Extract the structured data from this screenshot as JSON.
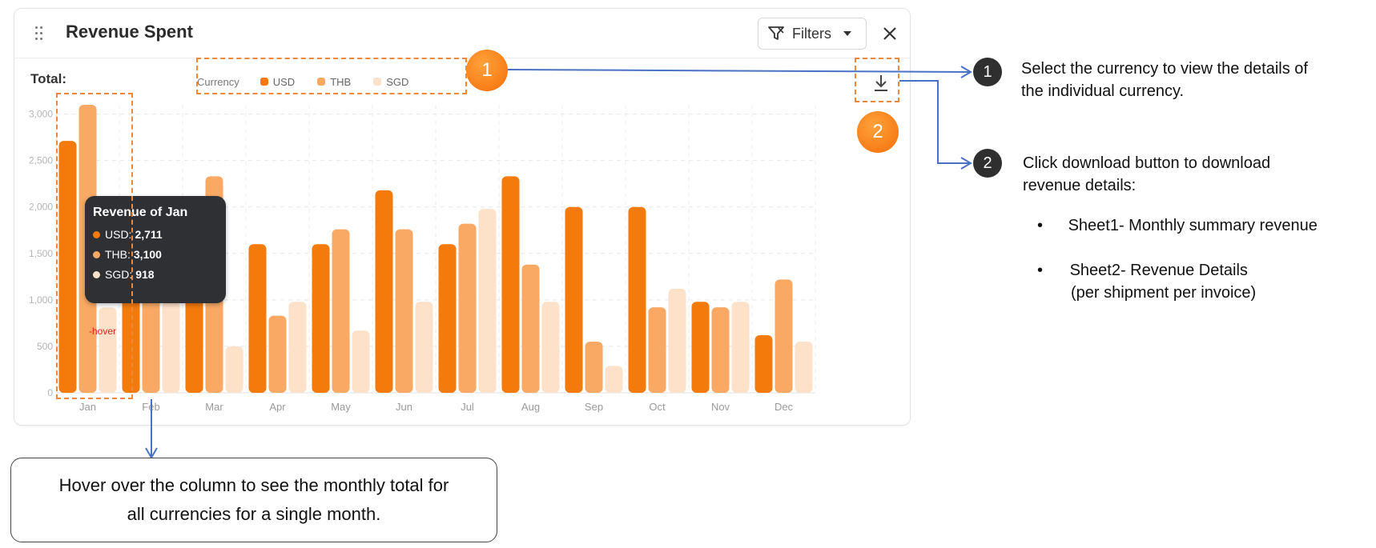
{
  "widget": {
    "title": "Revenue Spent",
    "filters_label": "Filters",
    "total_label": "Total:",
    "legend_title": "Currency"
  },
  "colors": {
    "USD": "#f47a0c",
    "THB": "#f9a964",
    "SGD": "#fde1c8"
  },
  "chart_data": {
    "type": "bar",
    "categories": [
      "Jan",
      "Feb",
      "Mar",
      "Apr",
      "May",
      "Jun",
      "Jul",
      "Aug",
      "Sep",
      "Oct",
      "Nov",
      "Dec"
    ],
    "series": [
      {
        "name": "USD",
        "values": [
          2711,
          2100,
          1450,
          1600,
          1600,
          2180,
          1600,
          2330,
          2000,
          2000,
          980,
          620
        ]
      },
      {
        "name": "THB",
        "values": [
          3100,
          1050,
          2330,
          830,
          1760,
          1760,
          1820,
          1380,
          550,
          920,
          920,
          1220
        ]
      },
      {
        "name": "SGD",
        "values": [
          918,
          980,
          500,
          980,
          670,
          980,
          1980,
          980,
          290,
          1120,
          980,
          550
        ]
      }
    ],
    "yticks": [
      "0",
      "500",
      "1,000",
      "1,500",
      "2,000",
      "2,500",
      "3,000"
    ],
    "ylim": [
      0,
      3100
    ],
    "legend": "top-center"
  },
  "tooltip": {
    "title": "Revenue of Jan",
    "rows": [
      {
        "label": "USD:",
        "value": "2,711"
      },
      {
        "label": "THB:",
        "value": "3,100"
      },
      {
        "label": "SGD:",
        "value": "918"
      }
    ]
  },
  "hover_note": "-hover",
  "annotations": {
    "badge1": "1",
    "badge2": "2",
    "step1_text_line1": "Select the currency to view the details of",
    "step1_text_line2": "the individual currency.",
    "step2_text_line1": "Click download button to download",
    "step2_text_line2": "revenue details:",
    "bullet_char": "•",
    "sheet1": "Sheet1- Monthly summary revenue",
    "sheet2_line1": "Sheet2- Revenue Details",
    "sheet2_line2": "(per shipment per invoice)",
    "hover_line1": "Hover over the column to see the monthly total for",
    "hover_line2": "all currencies for a single month."
  }
}
